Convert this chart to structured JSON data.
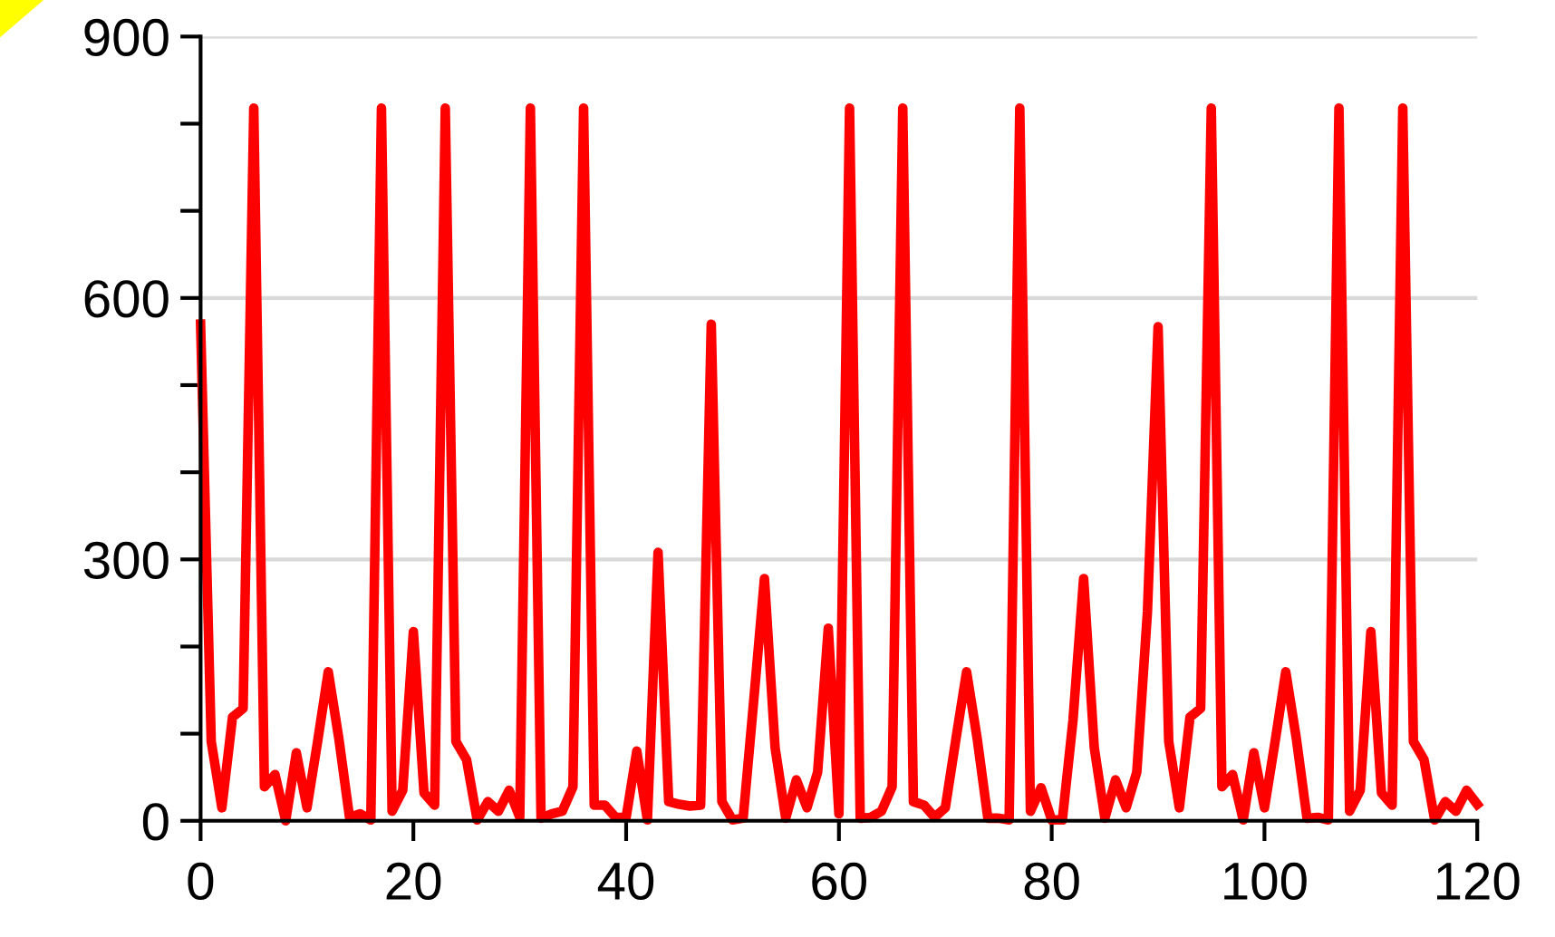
{
  "chart_data": {
    "type": "line",
    "x": [
      0,
      1,
      2,
      3,
      4,
      5,
      6,
      7,
      8,
      9,
      10,
      11,
      12,
      13,
      14,
      15,
      16,
      17,
      18,
      19,
      20,
      21,
      22,
      23,
      24,
      25,
      26,
      27,
      28,
      29,
      30,
      31,
      32,
      33,
      34,
      35,
      36,
      37,
      38,
      39,
      40,
      41,
      42,
      43,
      44,
      45,
      46,
      47,
      48,
      49,
      50,
      51,
      52,
      53,
      54,
      55,
      56,
      57,
      58,
      59,
      60,
      61,
      62,
      63,
      64,
      65,
      66,
      67,
      68,
      69,
      70,
      71,
      72,
      73,
      74,
      75,
      76,
      77,
      78,
      79,
      80,
      81,
      82,
      83,
      84,
      85,
      86,
      87,
      88,
      89,
      90,
      91,
      92,
      93,
      94,
      95,
      96,
      97,
      98,
      99,
      100,
      101,
      102,
      103,
      104,
      105,
      106,
      107,
      108,
      109,
      110,
      111,
      112,
      113,
      114,
      115,
      116,
      117,
      118,
      119,
      120
    ],
    "series": [
      {
        "color": "#ff0000",
        "values": [
          570,
          91,
          15,
          119,
          129,
          818,
          39,
          53,
          0,
          78,
          15,
          91,
          171,
          94,
          4,
          8,
          1,
          818,
          11,
          35,
          217,
          32,
          18,
          818,
          91,
          70,
          1,
          22,
          11,
          35,
          4,
          818,
          3,
          8,
          11,
          39,
          818,
          18,
          18,
          4,
          4,
          80,
          1,
          308,
          22,
          19,
          17,
          18,
          570,
          22,
          1,
          3,
          139,
          278,
          84,
          3,
          47,
          15,
          56,
          221,
          8,
          818,
          3,
          4,
          11,
          39,
          818,
          22,
          18,
          4,
          15,
          94,
          171,
          94,
          3,
          3,
          1,
          818,
          11,
          38,
          1,
          1,
          115,
          278,
          84,
          3,
          47,
          15,
          56,
          240,
          567,
          91,
          15,
          119,
          129,
          818,
          39,
          53,
          1,
          78,
          15,
          91,
          171,
          94,
          3,
          4,
          1,
          818,
          11,
          35,
          217,
          32,
          18,
          818,
          91,
          70,
          1,
          22,
          11,
          35,
          19
        ]
      }
    ],
    "xlim": [
      0,
      120
    ],
    "xticks": [
      0,
      20,
      40,
      60,
      80,
      100,
      120
    ],
    "ylim": [
      0,
      900
    ],
    "yticks": [
      0,
      {
        "value": 100,
        "label": null
      },
      {
        "value": 200,
        "label": null
      },
      300,
      {
        "value": 400,
        "label": null
      },
      {
        "value": 500,
        "label": null
      },
      600,
      {
        "value": 700,
        "label": null
      },
      {
        "value": 800,
        "label": null
      },
      900
    ],
    "grid": "y",
    "marker": "none",
    "line_style": "solid",
    "legend": false
  }
}
